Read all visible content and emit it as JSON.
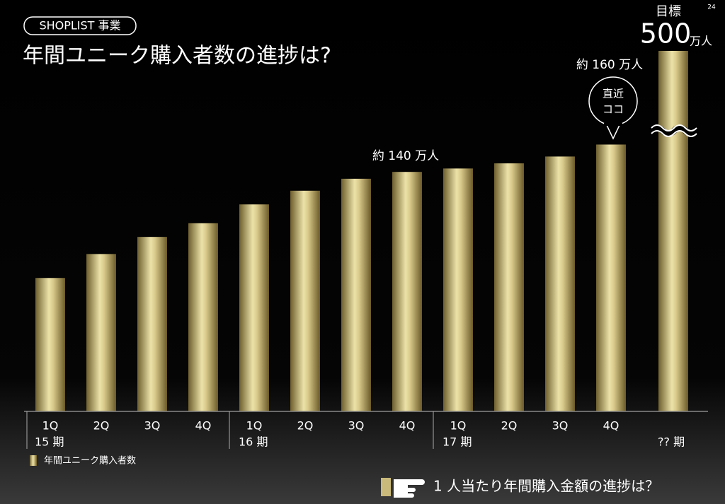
{
  "chart_data": {
    "type": "bar",
    "tag": "SHOPLIST 事業",
    "page_number": "24",
    "title": "年間ユニーク購入者数の進捗は?",
    "categories": [
      "1Q",
      "2Q",
      "3Q",
      "4Q",
      "1Q",
      "2Q",
      "3Q",
      "4Q",
      "1Q",
      "2Q",
      "3Q",
      "4Q",
      null
    ],
    "periods": [
      "15 期",
      null,
      null,
      null,
      "16 期",
      null,
      null,
      null,
      "17 期",
      null,
      null,
      null,
      "?? 期"
    ],
    "series": [
      {
        "name": "年間ユニーク購入者数",
        "color": "#c9b97a",
        "values": [
          78,
          92,
          102,
          110,
          121,
          129,
          136,
          140,
          142,
          145,
          149,
          156,
          500
        ],
        "value_labels": [
          null,
          null,
          null,
          null,
          null,
          null,
          null,
          null,
          null,
          null,
          null,
          null,
          "500"
        ]
      }
    ],
    "annotations": [
      {
        "text": "約 140 万人",
        "index": 7
      },
      {
        "text": "約 160 万人",
        "index": 11
      }
    ],
    "callout": [
      "直近",
      "ココ"
    ],
    "target_label": "目標",
    "target_unit": "万人",
    "footer": "1 人当たり年間購入金額の進捗は？"
  }
}
